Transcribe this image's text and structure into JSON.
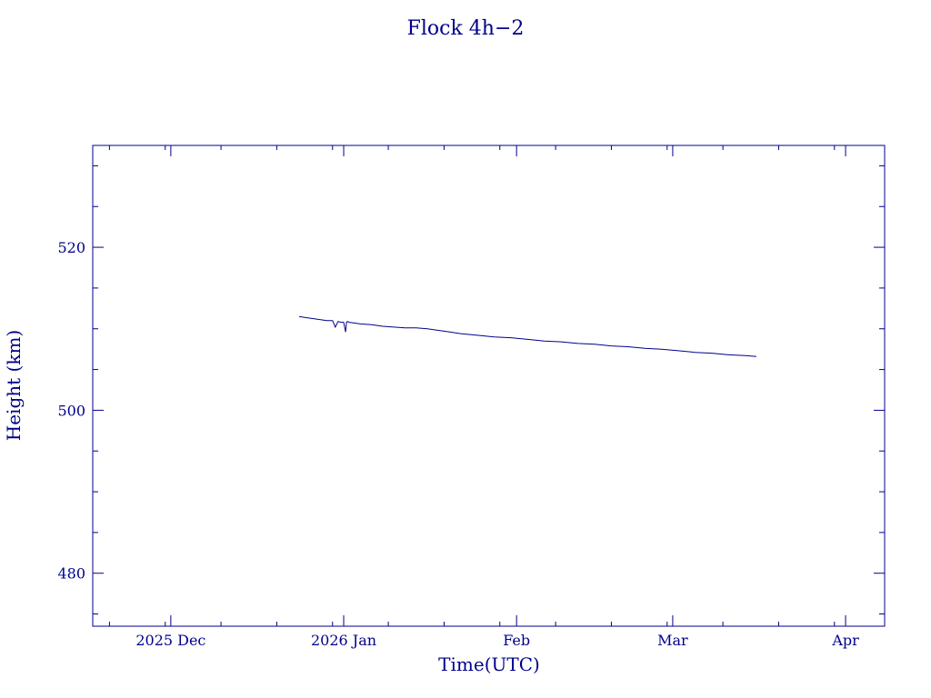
{
  "chart_data": {
    "type": "line",
    "title": "Flock 4h−2",
    "xlabel": "Time(UTC)",
    "ylabel": "Height (km)",
    "xlim": [
      "2025-11-17",
      "2026-04-08"
    ],
    "ylim": [
      473.5,
      532.5
    ],
    "yticks": [
      {
        "value": 480,
        "label": "480"
      },
      {
        "value": 500,
        "label": "500"
      },
      {
        "value": 520,
        "label": "520"
      }
    ],
    "xticks": [
      {
        "date": "2025-12-01",
        "label": "2025 Dec"
      },
      {
        "date": "2026-01-01",
        "label": "2026 Jan"
      },
      {
        "date": "2026-02-01",
        "label": "Feb"
      },
      {
        "date": "2026-03-01",
        "label": "Mar"
      },
      {
        "date": "2026-04-01",
        "label": "Apr"
      }
    ],
    "grid": false,
    "color": "#00008b",
    "series": [
      {
        "x": [
          "2025-12-24",
          "2025-12-25",
          "2025-12-26",
          "2025-12-27",
          "2025-12-28",
          "2025-12-29",
          "2025-12-30",
          "2025-12-30T12:00",
          "2025-12-31",
          "2025-12-31T12:00",
          "2026-01-01",
          "2026-01-01T08:00",
          "2026-01-01T12:00",
          "2026-01-01T16:00",
          "2026-01-02",
          "2026-01-03",
          "2026-01-04",
          "2026-01-06",
          "2026-01-08",
          "2026-01-10",
          "2026-01-12",
          "2026-01-14",
          "2026-01-16",
          "2026-01-18",
          "2026-01-20",
          "2026-01-22",
          "2026-01-25",
          "2026-01-28",
          "2026-01-31",
          "2026-02-03",
          "2026-02-06",
          "2026-02-09",
          "2026-02-12",
          "2026-02-15",
          "2026-02-18",
          "2026-02-21",
          "2026-02-24",
          "2026-02-27",
          "2026-03-02",
          "2026-03-05",
          "2026-03-08",
          "2026-03-11",
          "2026-03-14",
          "2026-03-16"
        ],
        "y": [
          511.5,
          511.4,
          511.3,
          511.2,
          511.1,
          511.0,
          511.0,
          510.2,
          510.9,
          510.8,
          510.8,
          509.6,
          510.8,
          510.9,
          510.8,
          510.7,
          510.6,
          510.5,
          510.3,
          510.2,
          510.1,
          510.1,
          510.0,
          509.8,
          509.6,
          509.4,
          509.2,
          509.0,
          508.9,
          508.7,
          508.5,
          508.4,
          508.2,
          508.1,
          507.9,
          507.8,
          507.6,
          507.5,
          507.3,
          507.1,
          507.0,
          506.8,
          506.7,
          506.6
        ]
      }
    ]
  }
}
